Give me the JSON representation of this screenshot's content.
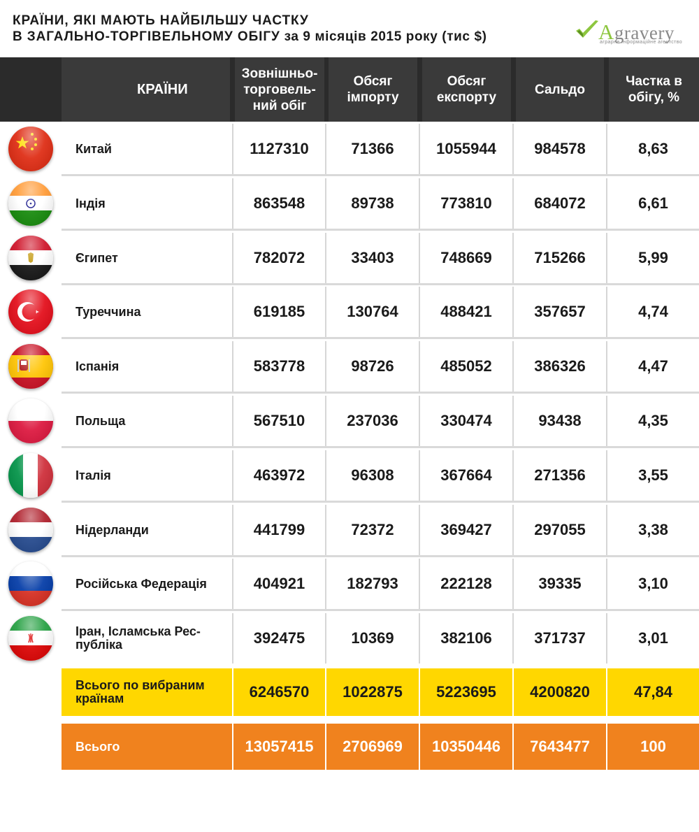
{
  "title": {
    "line1": "КРАЇНИ, ЯКІ МАЮТЬ НАЙБІЛЬШУ ЧАСТКУ",
    "line2_bold": "В ЗАГАЛЬНО-ТОРГІВЕЛЬНОМУ ОБІГУ",
    "line2_rest": " за 9 місяців 2015 року (тис $)"
  },
  "logo": {
    "letter": "A",
    "rest": "gravery",
    "sub": "аграрне інформаційне агентство"
  },
  "headers": {
    "countries": "КРАЇНИ",
    "turnover": [
      "Зовнішньо-",
      "торговель-",
      "ний обіг"
    ],
    "imports": [
      "Обсяг",
      "імпорту"
    ],
    "exports": [
      "Обсяг",
      "експорту"
    ],
    "balance": [
      "Сальдо"
    ],
    "share": [
      "Частка в",
      "обігу, %"
    ]
  },
  "chart_data": {
    "type": "table",
    "title": "КРАЇНИ, ЯКІ МАЮТЬ НАЙБІЛЬШУ ЧАСТКУ В ЗАГАЛЬНО-ТОРГІВЕЛЬНОМУ ОБІГУ за 9 місяців 2015 року (тис $)",
    "columns": [
      "КРАЇНИ",
      "Зовнішньоторговельний обіг",
      "Обсяг імпорту",
      "Обсяг експорту",
      "Сальдо",
      "Частка в обігу, %"
    ],
    "rows": [
      {
        "country": "Китай",
        "flag": "china-flag-icon",
        "turnover": "1127310",
        "imports": "71366",
        "exports": "1055944",
        "balance": "984578",
        "share": "8,63"
      },
      {
        "country": "Індія",
        "flag": "india-flag-icon",
        "turnover": "863548",
        "imports": "89738",
        "exports": "773810",
        "balance": "684072",
        "share": "6,61"
      },
      {
        "country": "Єгипет",
        "flag": "egypt-flag-icon",
        "turnover": "782072",
        "imports": "33403",
        "exports": "748669",
        "balance": "715266",
        "share": "5,99"
      },
      {
        "country": "Туреччина",
        "flag": "turkey-flag-icon",
        "turnover": "619185",
        "imports": "130764",
        "exports": "488421",
        "balance": "357657",
        "share": "4,74"
      },
      {
        "country": "Іспанія",
        "flag": "spain-flag-icon",
        "turnover": "583778",
        "imports": "98726",
        "exports": "485052",
        "balance": "386326",
        "share": "4,47"
      },
      {
        "country": "Польща",
        "flag": "poland-flag-icon",
        "turnover": "567510",
        "imports": "237036",
        "exports": "330474",
        "balance": "93438",
        "share": "4,35"
      },
      {
        "country": "Італія",
        "flag": "italy-flag-icon",
        "turnover": "463972",
        "imports": "96308",
        "exports": "367664",
        "balance": "271356",
        "share": "3,55"
      },
      {
        "country": "Нідерланди",
        "flag": "netherlands-flag-icon",
        "turnover": "441799",
        "imports": "72372",
        "exports": "369427",
        "balance": "297055",
        "share": "3,38"
      },
      {
        "country": "Російська Федерація",
        "flag": "russia-flag-icon",
        "turnover": "404921",
        "imports": "182793",
        "exports": "222128",
        "balance": "39335",
        "share": "3,10"
      },
      {
        "country": "Іран, Ісламська Рес-\nпубліка",
        "flag": "iran-flag-icon",
        "turnover": "392475",
        "imports": "10369",
        "exports": "382106",
        "balance": "371737",
        "share": "3,01"
      }
    ],
    "total_selected": {
      "label": "Всього по вибраним\nкраїнам",
      "turnover": "6246570",
      "imports": "1022875",
      "exports": "5223695",
      "balance": "4200820",
      "share": "47,84"
    },
    "total": {
      "label": "Всього",
      "turnover": "13057415",
      "imports": "2706969",
      "exports": "10350446",
      "balance": "7643477",
      "share": "100"
    }
  },
  "colors": {
    "header_bg": "#3a3a3a",
    "total_selected_bg": "#ffd700",
    "total_bg": "#f0821e",
    "logo_accent": "#8dc63f"
  }
}
